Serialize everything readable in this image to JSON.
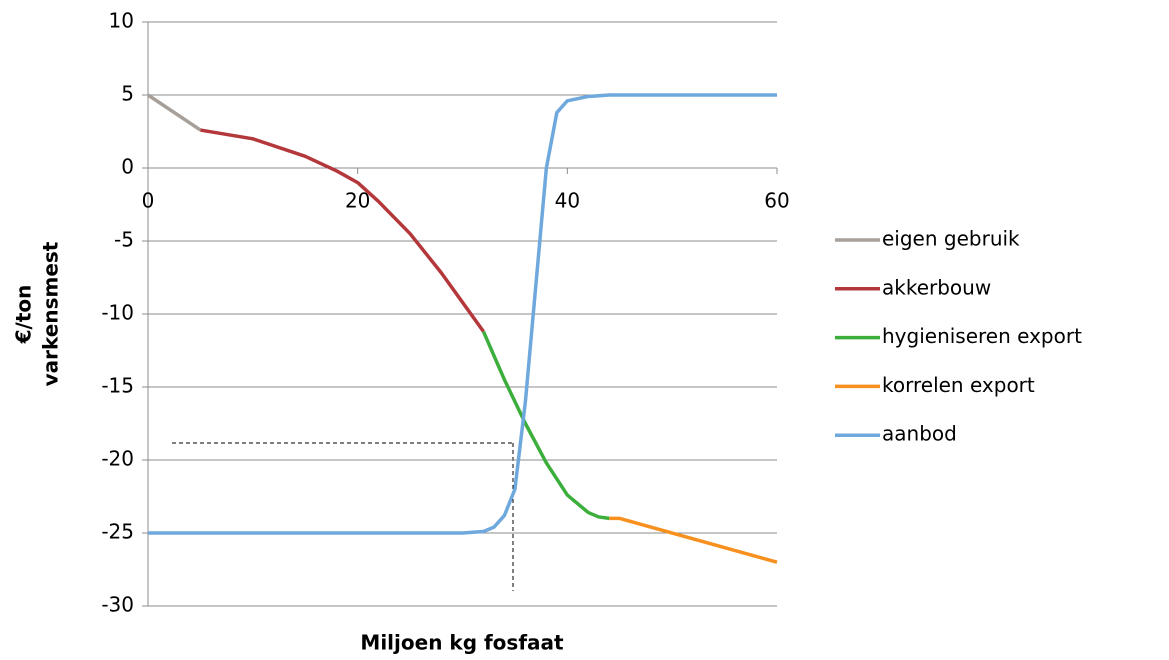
{
  "chart_data": {
    "type": "line",
    "xlabel": "Miljoen kg fosfaat",
    "ylabel_lines": [
      "€/ton",
      "varkensmest"
    ],
    "xlim": [
      0,
      60
    ],
    "xticks": [
      0,
      20,
      40,
      60
    ],
    "ylim": [
      -30,
      10
    ],
    "yticks": [
      10,
      5,
      0,
      -5,
      -10,
      -15,
      -20,
      -25,
      -30
    ],
    "grid": true,
    "legend": "right",
    "series": [
      {
        "name": "eigen gebruik",
        "color": "#a7a09a",
        "x": [
          0,
          5
        ],
        "values": [
          5,
          2.6
        ]
      },
      {
        "name": "akkerbouw",
        "color": "#b3373b",
        "x": [
          5,
          10,
          15,
          18,
          20,
          22,
          25,
          28,
          30,
          32
        ],
        "values": [
          2.6,
          2.0,
          0.8,
          -0.2,
          -1.0,
          -2.3,
          -4.5,
          -7.2,
          -9.2,
          -11.2
        ]
      },
      {
        "name": "hygieniseren export",
        "color": "#3cae3c",
        "x": [
          32,
          34,
          36,
          38,
          40,
          42,
          43,
          44
        ],
        "values": [
          -11.2,
          -14.5,
          -17.5,
          -20.2,
          -22.4,
          -23.6,
          -23.9,
          -24.0
        ]
      },
      {
        "name": "korrelen export",
        "color": "#f7901e",
        "x": [
          44,
          45,
          60
        ],
        "values": [
          -24.0,
          -24.0,
          -27.0
        ]
      },
      {
        "name": "aanbod",
        "color": "#6fa8dc",
        "x": [
          0,
          30,
          32,
          33,
          34,
          35,
          36,
          37,
          38,
          39,
          40,
          42,
          44,
          60
        ],
        "values": [
          -25,
          -25,
          -24.9,
          -24.6,
          -23.8,
          -22,
          -16,
          -8,
          0,
          3.8,
          4.6,
          4.9,
          5,
          5
        ]
      }
    ]
  }
}
